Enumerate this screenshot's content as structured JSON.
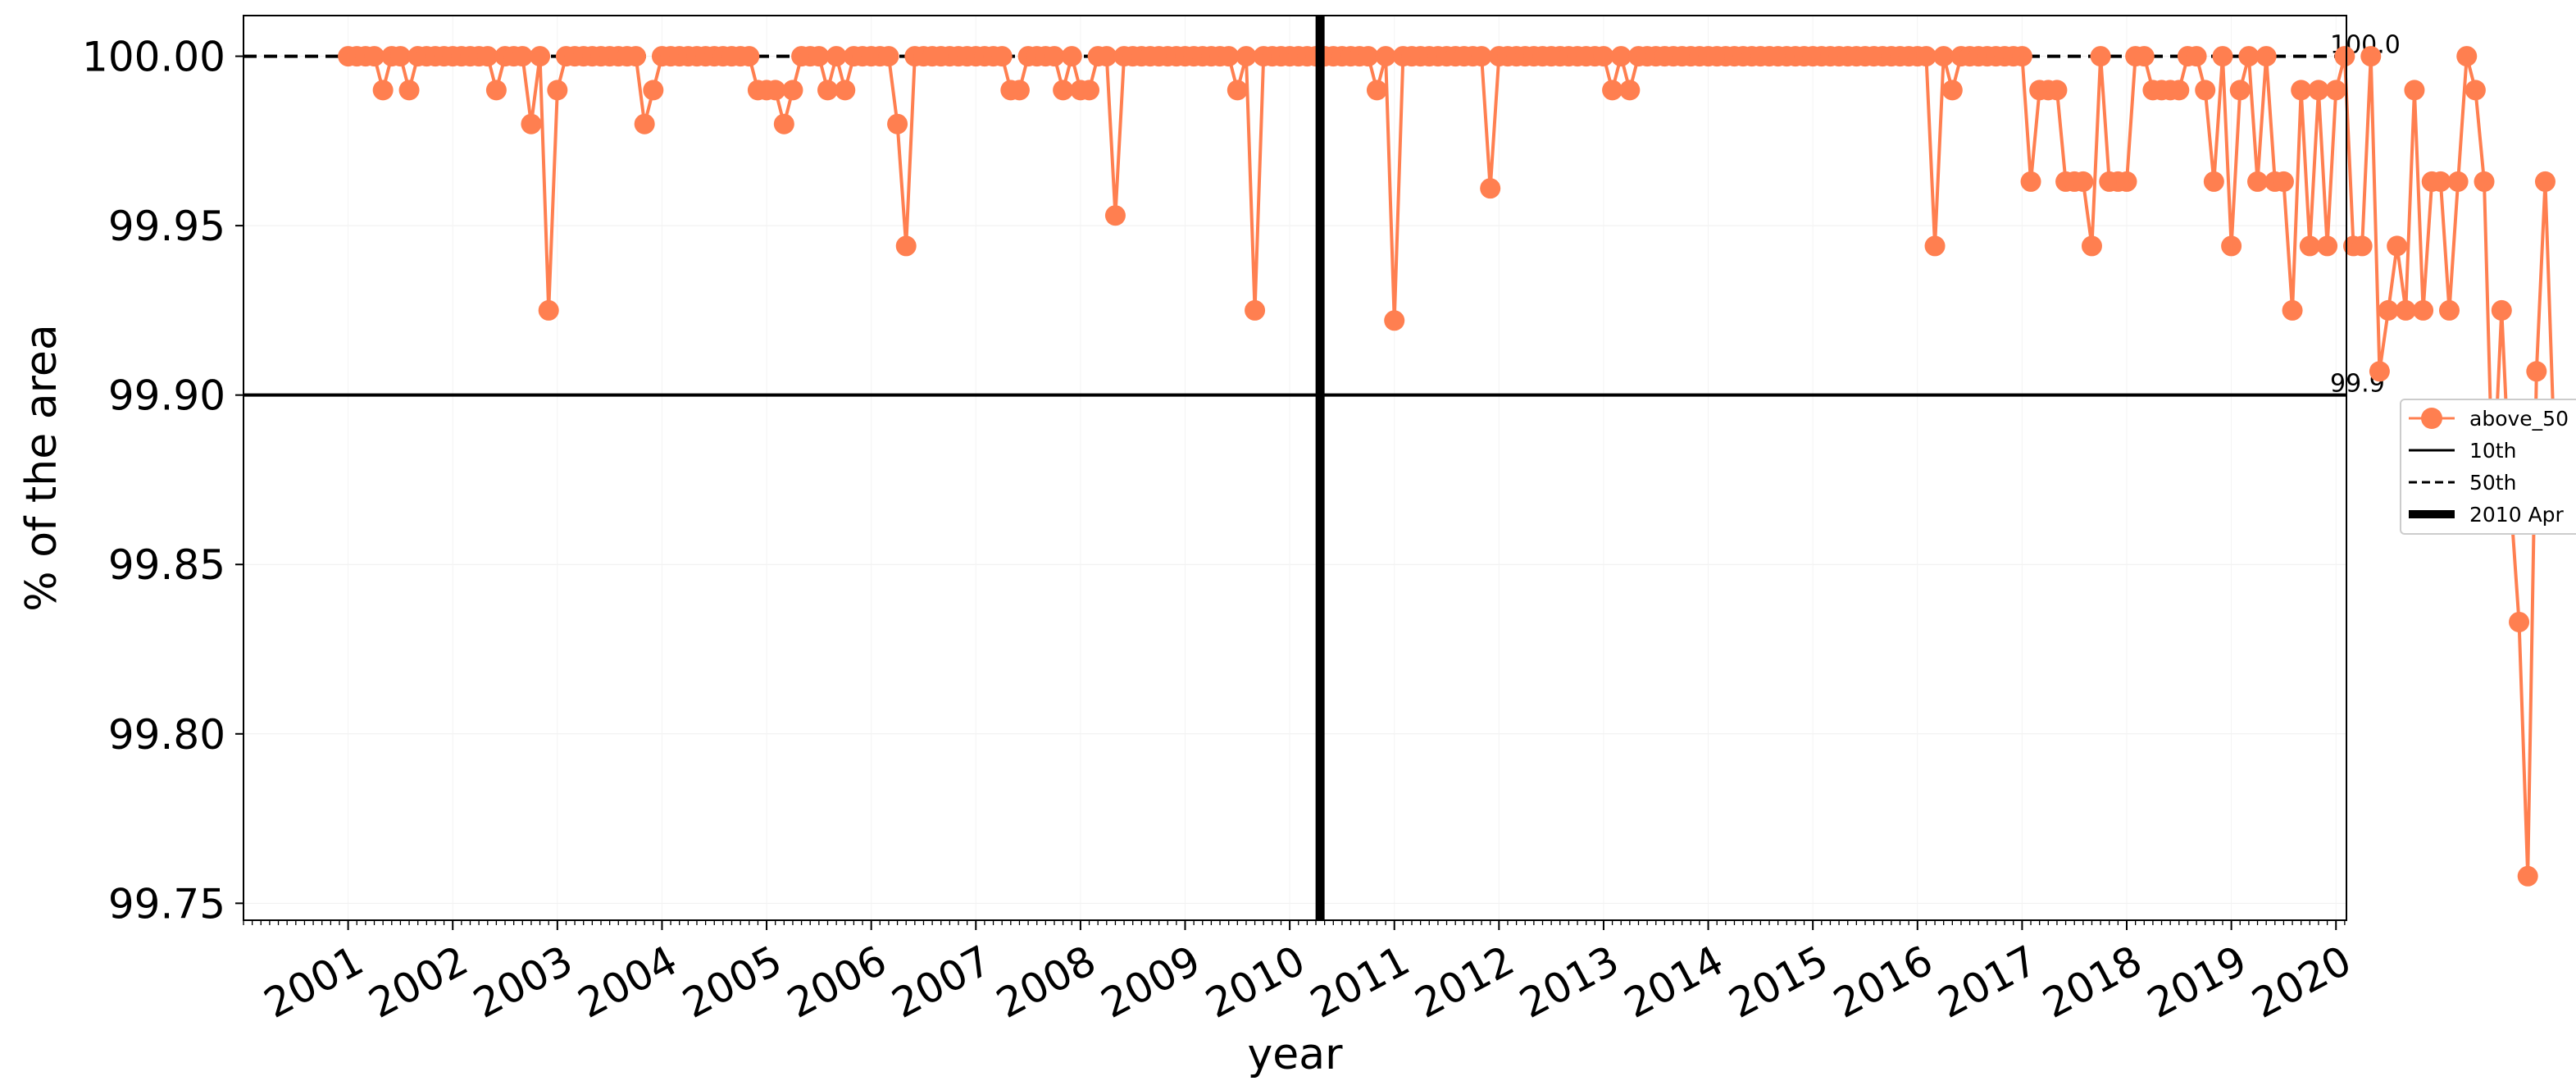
{
  "chart_data": {
    "type": "line",
    "xlabel": "year",
    "ylabel": "% of the area",
    "xlim": [
      2000.0,
      2020.1
    ],
    "ylim": [
      99.745,
      100.012
    ],
    "grid": true,
    "legend_placement": "right, outside plot",
    "x_ticks": [
      2001,
      2002,
      2003,
      2004,
      2005,
      2006,
      2007,
      2008,
      2009,
      2010,
      2011,
      2012,
      2013,
      2014,
      2015,
      2016,
      2017,
      2018,
      2019,
      2020
    ],
    "x_tick_labels": [
      "2001",
      "2002",
      "2003",
      "2004",
      "2005",
      "2006",
      "2007",
      "2008",
      "2009",
      "2010",
      "2011",
      "2012",
      "2013",
      "2014",
      "2015",
      "2016",
      "2017",
      "2018",
      "2019",
      "2020"
    ],
    "y_ticks": [
      99.75,
      99.8,
      99.85,
      99.9,
      99.95,
      100.0
    ],
    "y_tick_labels": [
      "99.75",
      "99.80",
      "99.85",
      "99.90",
      "99.95",
      "100.00"
    ],
    "series": [
      {
        "name": "above_50",
        "color": "#FF7F50",
        "marker": "circle",
        "x_start": 2001.0,
        "x_step_months": 1,
        "values": [
          100.0,
          100.0,
          100.0,
          100.0,
          99.99,
          100.0,
          100.0,
          99.99,
          100.0,
          100.0,
          100.0,
          100.0,
          100.0,
          100.0,
          100.0,
          100.0,
          100.0,
          99.99,
          100.0,
          100.0,
          100.0,
          99.98,
          100.0,
          99.925,
          99.99,
          100.0,
          100.0,
          100.0,
          100.0,
          100.0,
          100.0,
          100.0,
          100.0,
          100.0,
          99.98,
          99.99,
          100.0,
          100.0,
          100.0,
          100.0,
          100.0,
          100.0,
          100.0,
          100.0,
          100.0,
          100.0,
          100.0,
          99.99,
          99.99,
          99.99,
          99.98,
          99.99,
          100.0,
          100.0,
          100.0,
          99.99,
          100.0,
          99.99,
          100.0,
          100.0,
          100.0,
          100.0,
          100.0,
          99.98,
          99.944,
          100.0,
          100.0,
          100.0,
          100.0,
          100.0,
          100.0,
          100.0,
          100.0,
          100.0,
          100.0,
          100.0,
          99.99,
          99.99,
          100.0,
          100.0,
          100.0,
          100.0,
          99.99,
          100.0,
          99.99,
          99.99,
          100.0,
          100.0,
          99.953,
          100.0,
          100.0,
          100.0,
          100.0,
          100.0,
          100.0,
          100.0,
          100.0,
          100.0,
          100.0,
          100.0,
          100.0,
          100.0,
          99.99,
          100.0,
          99.925,
          100.0,
          100.0,
          100.0,
          100.0,
          100.0,
          100.0,
          100.0,
          100.0,
          100.0,
          100.0,
          100.0,
          100.0,
          100.0,
          99.99,
          100.0,
          99.922,
          100.0,
          100.0,
          100.0,
          100.0,
          100.0,
          100.0,
          100.0,
          100.0,
          100.0,
          100.0,
          99.961,
          100.0,
          100.0,
          100.0,
          100.0,
          100.0,
          100.0,
          100.0,
          100.0,
          100.0,
          100.0,
          100.0,
          100.0,
          100.0,
          99.99,
          100.0,
          99.99,
          100.0,
          100.0,
          100.0,
          100.0,
          100.0,
          100.0,
          100.0,
          100.0,
          100.0,
          100.0,
          100.0,
          100.0,
          100.0,
          100.0,
          100.0,
          100.0,
          100.0,
          100.0,
          100.0,
          100.0,
          100.0,
          100.0,
          100.0,
          100.0,
          100.0,
          100.0,
          100.0,
          100.0,
          100.0,
          100.0,
          100.0,
          100.0,
          100.0,
          100.0,
          99.944,
          100.0,
          99.99,
          100.0,
          100.0,
          100.0,
          100.0,
          100.0,
          100.0,
          100.0,
          100.0,
          99.963,
          99.99,
          99.99,
          99.99,
          99.963,
          99.963,
          99.963,
          99.944,
          100.0,
          99.963,
          99.963,
          99.963,
          100.0,
          100.0,
          99.99,
          99.99,
          99.99,
          99.99,
          100.0,
          100.0,
          99.99,
          99.963,
          100.0,
          99.944,
          99.99,
          100.0,
          99.963,
          100.0,
          99.963,
          99.963,
          99.925,
          99.99,
          99.944,
          99.99,
          99.944,
          99.99,
          100.0,
          99.944,
          99.944,
          100.0,
          99.907,
          99.925,
          99.944,
          99.925,
          99.99,
          99.925,
          99.963,
          99.963,
          99.925,
          99.963,
          100.0,
          99.99,
          99.963,
          99.87,
          99.925,
          99.87,
          99.833,
          99.758,
          99.907,
          99.963,
          99.888
        ]
      }
    ],
    "reference_lines": [
      {
        "name": "10th",
        "value": 99.9,
        "style": "solid",
        "label": "99.9"
      },
      {
        "name": "50th",
        "value": 100.0,
        "style": "dashed",
        "label": "100.0"
      }
    ],
    "vertical_line": {
      "name": "2010 Apr",
      "x": 2010.29,
      "style": "thick solid"
    }
  }
}
